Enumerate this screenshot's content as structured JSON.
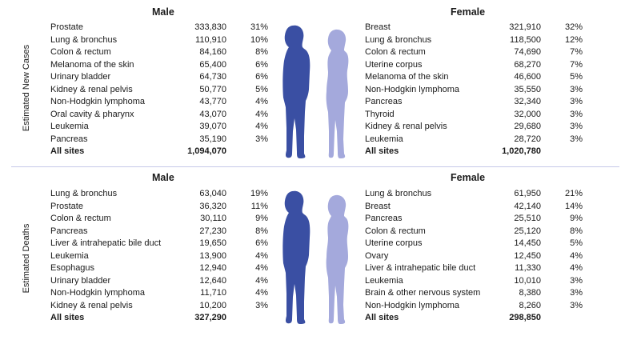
{
  "colors": {
    "male_figure": "#3a4fa3",
    "female_figure": "#a4a9dc",
    "divider": "#c5c9e8"
  },
  "new_cases": {
    "side_label": "Estimated New Cases",
    "male": {
      "heading": "Male",
      "rows": [
        {
          "site": "Prostate",
          "count": "333,830",
          "pct": "31%"
        },
        {
          "site": "Lung & bronchus",
          "count": "110,910",
          "pct": "10%"
        },
        {
          "site": "Colon & rectum",
          "count": "84,160",
          "pct": "8%"
        },
        {
          "site": "Melanoma of the skin",
          "count": "65,400",
          "pct": "6%"
        },
        {
          "site": "Urinary bladder",
          "count": "64,730",
          "pct": "6%"
        },
        {
          "site": "Kidney & renal pelvis",
          "count": "50,770",
          "pct": "5%"
        },
        {
          "site": "Non-Hodgkin lymphoma",
          "count": "43,770",
          "pct": "4%"
        },
        {
          "site": "Oral cavity & pharynx",
          "count": "43,070",
          "pct": "4%"
        },
        {
          "site": "Leukemia",
          "count": "39,070",
          "pct": "4%"
        },
        {
          "site": "Pancreas",
          "count": "35,190",
          "pct": "3%"
        }
      ],
      "total": {
        "site": "All sites",
        "count": "1,094,070"
      }
    },
    "female": {
      "heading": "Female",
      "rows": [
        {
          "site": "Breast",
          "count": "321,910",
          "pct": "32%"
        },
        {
          "site": "Lung & bronchus",
          "count": "118,500",
          "pct": "12%"
        },
        {
          "site": "Colon & rectum",
          "count": "74,690",
          "pct": "7%"
        },
        {
          "site": "Uterine corpus",
          "count": "68,270",
          "pct": "7%"
        },
        {
          "site": "Melanoma of the skin",
          "count": "46,600",
          "pct": "5%"
        },
        {
          "site": "Non-Hodgkin lymphoma",
          "count": "35,550",
          "pct": "3%"
        },
        {
          "site": "Pancreas",
          "count": "32,340",
          "pct": "3%"
        },
        {
          "site": "Thyroid",
          "count": "32,000",
          "pct": "3%"
        },
        {
          "site": "Kidney & renal pelvis",
          "count": "29,680",
          "pct": "3%"
        },
        {
          "site": "Leukemia",
          "count": "28,720",
          "pct": "3%"
        }
      ],
      "total": {
        "site": "All sites",
        "count": "1,020,780"
      }
    }
  },
  "deaths": {
    "side_label": "Estimated Deaths",
    "male": {
      "heading": "Male",
      "rows": [
        {
          "site": "Lung & bronchus",
          "count": "63,040",
          "pct": "19%"
        },
        {
          "site": "Prostate",
          "count": "36,320",
          "pct": "11%"
        },
        {
          "site": "Colon & rectum",
          "count": "30,110",
          "pct": "9%"
        },
        {
          "site": "Pancreas",
          "count": "27,230",
          "pct": "8%"
        },
        {
          "site": "Liver & intrahepatic bile duct",
          "count": "19,650",
          "pct": "6%"
        },
        {
          "site": "Leukemia",
          "count": "13,900",
          "pct": "4%"
        },
        {
          "site": "Esophagus",
          "count": "12,940",
          "pct": "4%"
        },
        {
          "site": "Urinary bladder",
          "count": "12,640",
          "pct": "4%"
        },
        {
          "site": "Non-Hodgkin lymphoma",
          "count": "11,710",
          "pct": "4%"
        },
        {
          "site": "Kidney & renal pelvis",
          "count": "10,200",
          "pct": "3%"
        }
      ],
      "total": {
        "site": "All sites",
        "count": "327,290"
      }
    },
    "female": {
      "heading": "Female",
      "rows": [
        {
          "site": "Lung & bronchus",
          "count": "61,950",
          "pct": "21%"
        },
        {
          "site": "Breast",
          "count": "42,140",
          "pct": "14%"
        },
        {
          "site": "Pancreas",
          "count": "25,510",
          "pct": "9%"
        },
        {
          "site": "Colon & rectum",
          "count": "25,120",
          "pct": "8%"
        },
        {
          "site": "Uterine corpus",
          "count": "14,450",
          "pct": "5%"
        },
        {
          "site": "Ovary",
          "count": "12,450",
          "pct": "4%"
        },
        {
          "site": "Liver & intrahepatic bile duct",
          "count": "11,330",
          "pct": "4%"
        },
        {
          "site": "Leukemia",
          "count": "10,010",
          "pct": "3%"
        },
        {
          "site": "Brain & other nervous system",
          "count": "8,380",
          "pct": "3%"
        },
        {
          "site": "Non-Hodgkin lymphoma",
          "count": "8,260",
          "pct": "3%"
        }
      ],
      "total": {
        "site": "All sites",
        "count": "298,850"
      }
    }
  }
}
